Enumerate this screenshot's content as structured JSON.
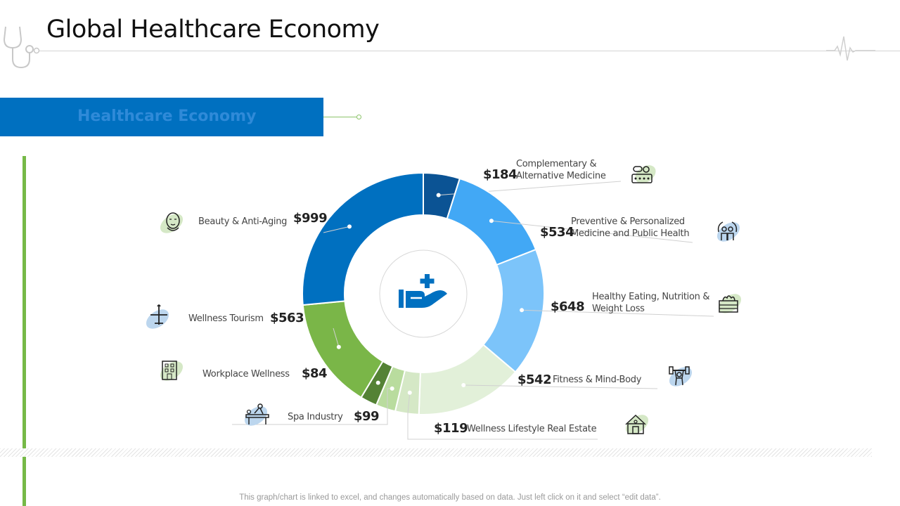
{
  "page": {
    "title": "Global Healthcare Economy",
    "banner": "Healthcare Economy",
    "footnote": "This graph/chart is linked to excel,  and changes automatically based on data. Just left click on it and select “edit data”."
  },
  "colors": {
    "banner": "#0070c0",
    "accent_green": "#76b947",
    "ring_divider": "#ffffff"
  },
  "chart_data": {
    "type": "pie",
    "style": "donut",
    "center_icon": "hand-medical-cross-icon",
    "currency_prefix": "$",
    "slices": [
      {
        "name": "Complementary & Alternative Medicine",
        "value": 184,
        "label": "$184",
        "color": "#0b5394",
        "icon": "pills-icon"
      },
      {
        "name": "Preventive & Personalized Medicine and Public Health",
        "value": 534,
        "label": "$534",
        "color": "#42a8f5",
        "icon": "hands-people-icon"
      },
      {
        "name": "Healthy Eating, Nutrition & Weight Loss",
        "value": 648,
        "label": "$648",
        "color": "#7cc4fa",
        "icon": "vegetable-basket-icon"
      },
      {
        "name": "Fitness & Mind-Body",
        "value": 542,
        "label": "$542",
        "color": "#e2f0d9",
        "icon": "weightlifter-icon"
      },
      {
        "name": "Wellness Lifestyle Real Estate",
        "value": 119,
        "label": "$119",
        "color": "#d5e8c6",
        "icon": "house-icon"
      },
      {
        "name": "Spa Industry",
        "value": 99,
        "label": "$99",
        "color": "#b9dc9e",
        "icon": "massage-icon"
      },
      {
        "name": "Workplace Wellness",
        "value": 84,
        "label": "$84",
        "color": "#548235",
        "icon": "office-building-icon"
      },
      {
        "name": "Wellness Tourism",
        "value": 563,
        "label": "$563",
        "color": "#7ab648",
        "icon": "airplane-icon"
      },
      {
        "name": "Beauty & Anti-Aging",
        "value": 999,
        "label": "$999",
        "color": "#0070c0",
        "icon": "face-mask-icon"
      }
    ]
  }
}
